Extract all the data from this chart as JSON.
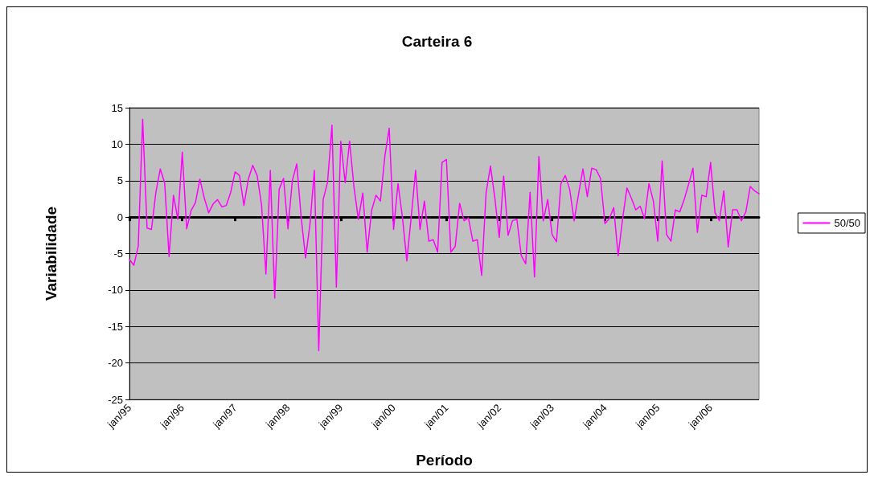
{
  "chart_data": {
    "type": "line",
    "title": "Carteira 6",
    "xlabel": "Período",
    "ylabel": "Variabilidade",
    "categories": [
      "jan/95",
      null,
      null,
      null,
      null,
      null,
      null,
      null,
      null,
      null,
      null,
      null,
      "jan/96",
      null,
      null,
      null,
      null,
      null,
      null,
      null,
      null,
      null,
      null,
      null,
      "jan/97",
      null,
      null,
      null,
      null,
      null,
      null,
      null,
      null,
      null,
      null,
      null,
      "jan/98",
      null,
      null,
      null,
      null,
      null,
      null,
      null,
      null,
      null,
      null,
      null,
      "jan/99",
      null,
      null,
      null,
      null,
      null,
      null,
      null,
      null,
      null,
      null,
      null,
      "jan/00",
      null,
      null,
      null,
      null,
      null,
      null,
      null,
      null,
      null,
      null,
      null,
      "jan/01",
      null,
      null,
      null,
      null,
      null,
      null,
      null,
      null,
      null,
      null,
      null,
      "jan/02",
      null,
      null,
      null,
      null,
      null,
      null,
      null,
      null,
      null,
      null,
      null,
      "jan/03",
      null,
      null,
      null,
      null,
      null,
      null,
      null,
      null,
      null,
      null,
      null,
      "jan/04",
      null,
      null,
      null,
      null,
      null,
      null,
      null,
      null,
      null,
      null,
      null,
      "jan/05",
      null,
      null,
      null,
      null,
      null,
      null,
      null,
      null,
      null,
      null,
      null,
      "jan/06",
      null,
      null,
      null,
      null,
      null,
      null,
      null,
      null,
      null,
      null,
      null
    ],
    "series": [
      {
        "name": "50/50",
        "color": "#ff00ff",
        "values": [
          -5.8,
          -6.6,
          -4.0,
          13.4,
          -1.5,
          -1.7,
          3.4,
          6.6,
          4.7,
          -5.4,
          3.0,
          -0.3,
          8.9,
          -1.6,
          0.9,
          2.0,
          5.2,
          2.6,
          0.6,
          1.8,
          2.4,
          1.4,
          1.6,
          3.4,
          6.2,
          5.7,
          1.6,
          5.2,
          7.1,
          5.7,
          1.7,
          -7.8,
          6.4,
          -11.1,
          3.8,
          5.3,
          -1.6,
          5.0,
          7.3,
          0.0,
          -5.6,
          -1.0,
          6.4,
          -18.3,
          2.4,
          4.8,
          12.6,
          -9.6,
          10.4,
          4.7,
          10.4,
          4.1,
          -0.3,
          3.3,
          -4.8,
          0.9,
          3.0,
          2.2,
          8.3,
          12.2,
          -1.7,
          4.6,
          0.0,
          -6.0,
          0.0,
          6.4,
          -1.7,
          2.2,
          -3.3,
          -3.1,
          -4.8,
          7.5,
          7.9,
          -4.8,
          -4.0,
          1.9,
          -0.5,
          -0.1,
          -3.3,
          -3.1,
          -8.0,
          3.3,
          7.0,
          2.6,
          -2.8,
          5.6,
          -2.5,
          -0.5,
          -0.3,
          -5.3,
          -6.4,
          3.4,
          -8.2,
          8.3,
          -0.5,
          2.4,
          -2.4,
          -3.4,
          4.6,
          5.7,
          3.8,
          -0.5,
          3.1,
          6.6,
          2.8,
          6.7,
          6.5,
          5.3,
          -0.9,
          -0.2,
          1.3,
          -5.3,
          -0.3,
          4.0,
          2.6,
          1.0,
          1.5,
          -0.2,
          4.6,
          2.2,
          -3.3,
          7.7,
          -2.4,
          -3.3,
          1.0,
          0.7,
          2.4,
          4.5,
          6.7,
          -2.1,
          3.0,
          2.8,
          7.5,
          0.6,
          -0.5,
          3.6,
          -4.1,
          1.0,
          1.0,
          -0.5,
          0.7,
          4.2,
          3.6,
          3.2
        ]
      }
    ],
    "ylim": [
      -25,
      15
    ],
    "yticks": [
      -25,
      -20,
      -15,
      -10,
      -5,
      0,
      5,
      10,
      15
    ],
    "grid": "y",
    "legend": "right",
    "marker": "none",
    "line_style": "solid"
  }
}
